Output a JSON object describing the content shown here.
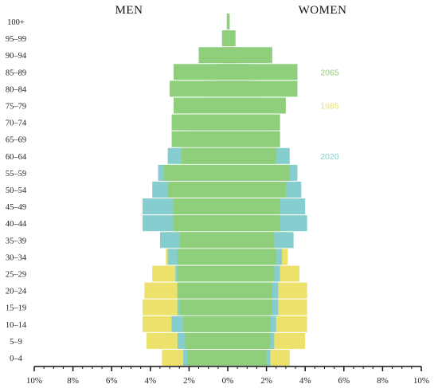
{
  "chart_data": {
    "type": "bar",
    "orientation": "horizontal-population-pyramid",
    "left_title": "MEN",
    "right_title": "WOMEN",
    "categories": [
      "0–4",
      "5–9",
      "10–14",
      "15–19",
      "20–24",
      "25–29",
      "30–34",
      "35–39",
      "40–44",
      "45–49",
      "50–54",
      "55–59",
      "60–64",
      "65–69",
      "70–74",
      "75–79",
      "80–84",
      "85–89",
      "90–94",
      "95–99",
      "100+"
    ],
    "x_tick_labels": [
      "10%",
      "8%",
      "6%",
      "4%",
      "2%",
      "0%",
      "2%",
      "4%",
      "6%",
      "8%",
      "10%"
    ],
    "xlim": [
      -10,
      10
    ],
    "series": [
      {
        "name": "1985",
        "color": "#ebe16b",
        "men": [
          3.4,
          4.2,
          4.4,
          4.4,
          4.3,
          3.9,
          3.2,
          3.2,
          3.4,
          3.4,
          3.0,
          2.8,
          2.5,
          2.2,
          1.9,
          1.4,
          1.0,
          0.6,
          0.25,
          0.08,
          0.02
        ],
        "women": [
          3.2,
          4.0,
          4.1,
          4.1,
          4.1,
          3.7,
          3.1,
          3.1,
          3.3,
          3.3,
          2.9,
          2.8,
          2.6,
          2.4,
          2.2,
          1.8,
          1.4,
          0.9,
          0.45,
          0.15,
          0.05
        ]
      },
      {
        "name": "2020",
        "color": "#86cdd0",
        "men": [
          2.3,
          2.6,
          2.9,
          2.6,
          2.6,
          2.7,
          3.1,
          3.5,
          4.4,
          4.4,
          3.9,
          3.6,
          3.1,
          2.5,
          2.3,
          1.8,
          1.2,
          0.8,
          0.25,
          0.1,
          0.02
        ],
        "women": [
          2.2,
          2.4,
          2.5,
          2.6,
          2.6,
          2.7,
          2.8,
          3.4,
          4.1,
          4.0,
          3.8,
          3.6,
          3.2,
          2.7,
          2.5,
          2.0,
          1.5,
          1.3,
          0.6,
          0.15,
          0.05
        ]
      },
      {
        "name": "2065",
        "color": "#8fcf7c",
        "men": [
          2.1,
          2.2,
          2.3,
          2.5,
          2.6,
          2.6,
          2.6,
          2.5,
          2.8,
          2.8,
          3.1,
          3.3,
          2.4,
          2.9,
          2.9,
          2.8,
          3.0,
          2.8,
          1.5,
          0.3,
          0.05
        ],
        "women": [
          2.0,
          2.2,
          2.2,
          2.3,
          2.3,
          2.4,
          2.5,
          2.4,
          2.7,
          2.7,
          3.0,
          3.2,
          2.5,
          2.7,
          2.7,
          3.0,
          3.6,
          3.6,
          2.3,
          0.4,
          0.1
        ]
      }
    ],
    "grid": false
  },
  "colors": {
    "background": "#ffffff",
    "axis": "#111111"
  }
}
